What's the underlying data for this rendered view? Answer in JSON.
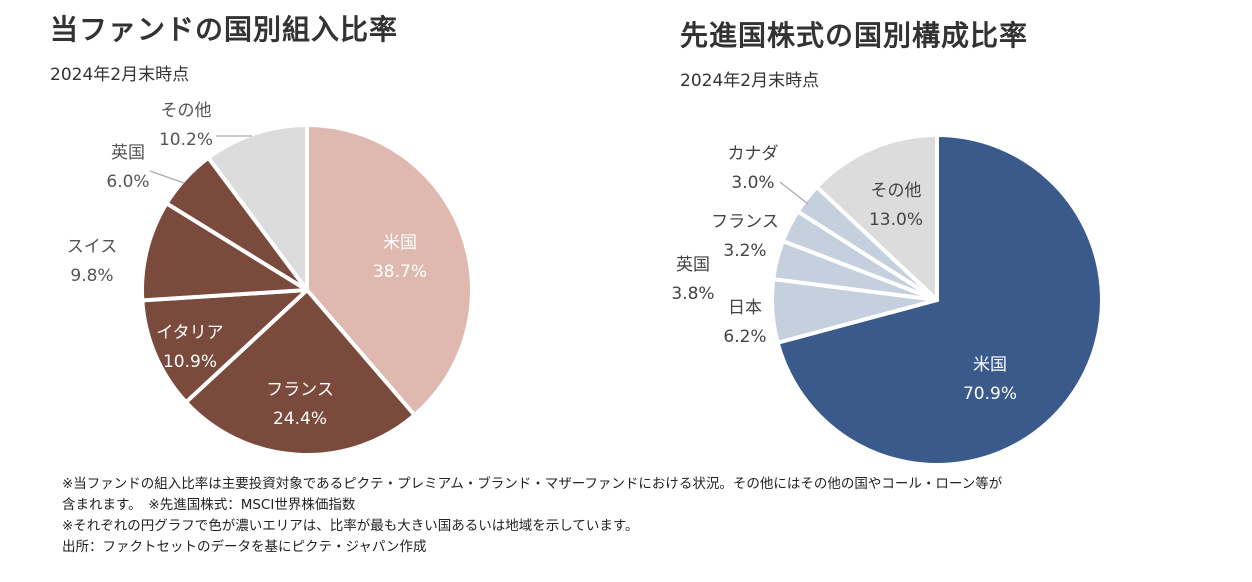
{
  "left": {
    "title": "当ファンドの国別組入比率",
    "subtitle": "2024年2月末時点"
  },
  "right": {
    "title": "先進国株式の国別構成比率",
    "subtitle": "2024年2月末時点"
  },
  "chart_data": [
    {
      "type": "pie",
      "title": "当ファンドの国別組入比率",
      "subtitle": "2024年2月末時点",
      "slices": [
        {
          "label": "米国",
          "value": 38.7,
          "value_text": "38.7%",
          "color": "#dfb9af",
          "text_color": "#ffffff"
        },
        {
          "label": "フランス",
          "value": 24.4,
          "value_text": "24.4%",
          "color": "#7a4a3d",
          "text_color": "#ffffff"
        },
        {
          "label": "イタリア",
          "value": 10.9,
          "value_text": "10.9%",
          "color": "#7a4a3d",
          "text_color": "#ffffff"
        },
        {
          "label": "スイス",
          "value": 9.8,
          "value_text": "9.8%",
          "color": "#7a4a3d",
          "text_color": "#555555"
        },
        {
          "label": "英国",
          "value": 6.0,
          "value_text": "6.0%",
          "color": "#7a4a3d",
          "text_color": "#555555"
        },
        {
          "label": "その他",
          "value": 10.2,
          "value_text": "10.2%",
          "color": "#dcdcdc",
          "text_color": "#555555"
        }
      ]
    },
    {
      "type": "pie",
      "title": "先進国株式の国別構成比率",
      "subtitle": "2024年2月末時点",
      "slices": [
        {
          "label": "米国",
          "value": 70.9,
          "value_text": "70.9%",
          "color": "#3a5a8c",
          "text_color": "#ffffff"
        },
        {
          "label": "日本",
          "value": 6.2,
          "value_text": "6.2%",
          "color": "#c5d0df",
          "text_color": "#444444"
        },
        {
          "label": "英国",
          "value": 3.8,
          "value_text": "3.8%",
          "color": "#c5d0df",
          "text_color": "#444444"
        },
        {
          "label": "フランス",
          "value": 3.2,
          "value_text": "3.2%",
          "color": "#c5d0df",
          "text_color": "#444444"
        },
        {
          "label": "カナダ",
          "value": 3.0,
          "value_text": "3.0%",
          "color": "#c5d0df",
          "text_color": "#444444"
        },
        {
          "label": "その他",
          "value": 13.0,
          "value_text": "13.0%",
          "color": "#dcdcdc",
          "text_color": "#444444"
        }
      ]
    }
  ],
  "footnotes": [
    "※当ファンドの組入比率は主要投資対象であるピクテ・プレミアム・ブランド・マザーファンドにおける状況。その他にはその他の国やコール・ローン等が",
    "含まれます。　※先進国株式：MSCI世界株価指数",
    "※それぞれの円グラフで色が濃いエリアは、比率が最も大きい国あるいは地域を示しています。",
    "出所：ファクトセットのデータを基にピクテ・ジャパン作成"
  ]
}
